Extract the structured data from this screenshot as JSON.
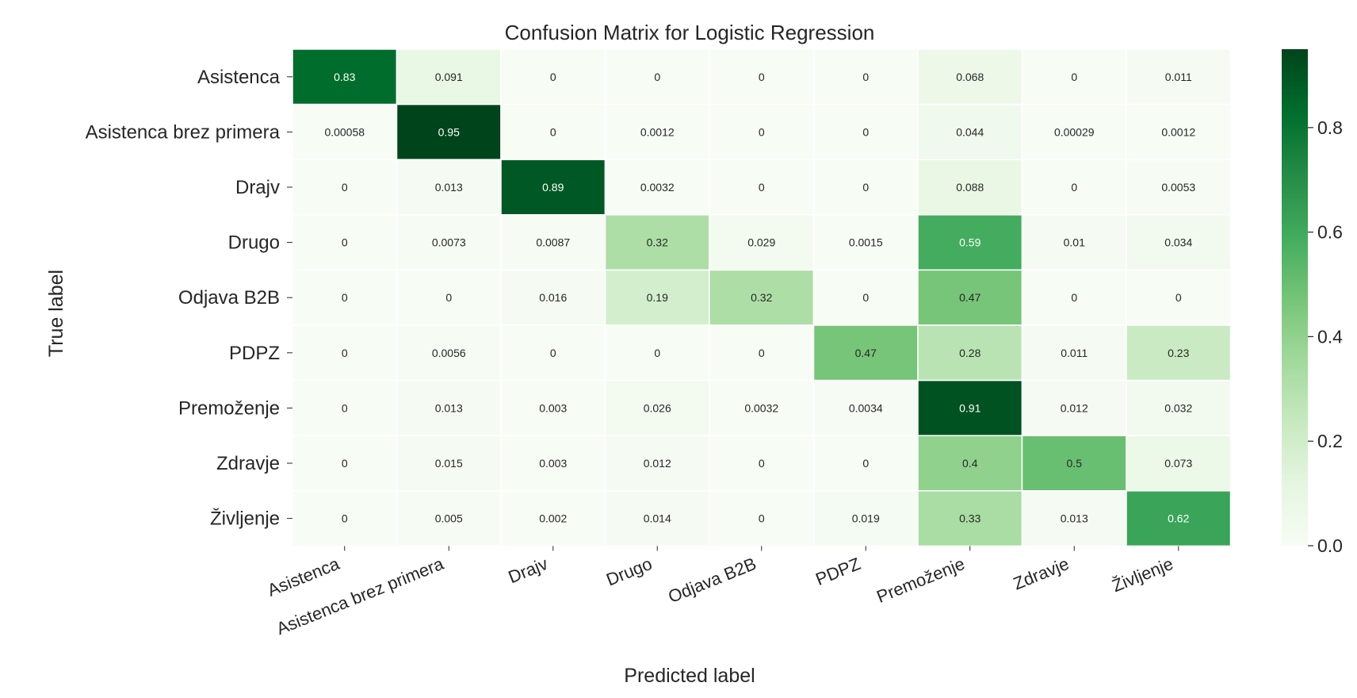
{
  "chart_data": {
    "type": "heatmap",
    "title": "Confusion Matrix for Logistic Regression",
    "xlabel": "Predicted label",
    "ylabel": "True label",
    "row_labels": [
      "Asistenca",
      "Asistenca brez primera",
      "Drajv",
      "Drugo",
      "Odjava B2B",
      "PDPZ",
      "Premoženje",
      "Zdravje",
      "Življenje"
    ],
    "col_labels": [
      "Asistenca",
      "Asistenca brez primera",
      "Drajv",
      "Drugo",
      "Odjava B2B",
      "PDPZ",
      "Premoženje",
      "Zdravje",
      "Življenje"
    ],
    "values": [
      [
        0.83,
        0.091,
        0,
        0,
        0,
        0,
        0.068,
        0,
        0.011
      ],
      [
        0.00058,
        0.95,
        0,
        0.0012,
        0,
        0,
        0.044,
        0.00029,
        0.0012
      ],
      [
        0,
        0.013,
        0.89,
        0.0032,
        0,
        0,
        0.088,
        0,
        0.0053
      ],
      [
        0,
        0.0073,
        0.0087,
        0.32,
        0.029,
        0.0015,
        0.59,
        0.01,
        0.034
      ],
      [
        0,
        0,
        0.016,
        0.19,
        0.32,
        0,
        0.47,
        0,
        0
      ],
      [
        0,
        0.0056,
        0,
        0,
        0,
        0.47,
        0.28,
        0.011,
        0.23
      ],
      [
        0,
        0.013,
        0.003,
        0.026,
        0.0032,
        0.0034,
        0.91,
        0.012,
        0.032
      ],
      [
        0,
        0.015,
        0.003,
        0.012,
        0,
        0,
        0.4,
        0.5,
        0.073
      ],
      [
        0,
        0.005,
        0.002,
        0.014,
        0,
        0.019,
        0.33,
        0.013,
        0.62
      ]
    ],
    "colorbar": {
      "range": [
        0,
        0.95
      ],
      "ticks": [
        0.0,
        0.2,
        0.4,
        0.6,
        0.8
      ],
      "tick_labels": [
        "0.0",
        "0.2",
        "0.4",
        "0.6",
        "0.8"
      ]
    },
    "colormap": [
      "#f7fcf5",
      "#e5f5e0",
      "#c7e9c0",
      "#a1d99b",
      "#74c476",
      "#41ab5d",
      "#238b45",
      "#006d2c",
      "#00441b"
    ]
  }
}
